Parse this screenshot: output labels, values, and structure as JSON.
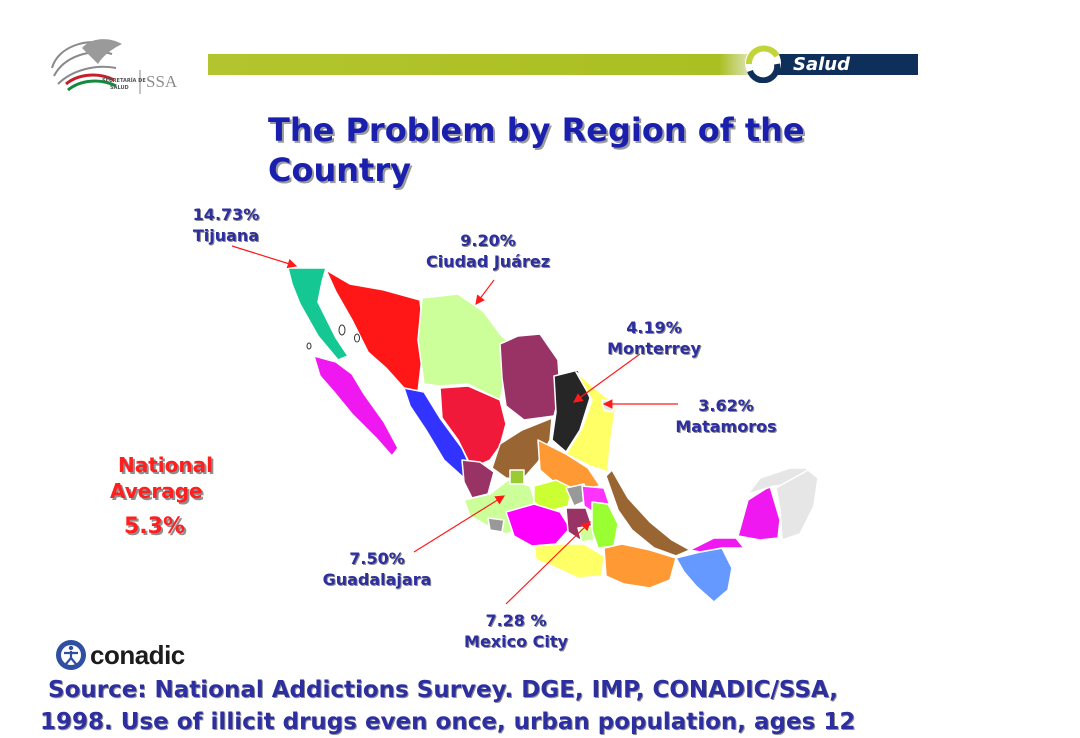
{
  "header": {
    "ministry_logo_text_1": "SECRETARÍA DE",
    "ministry_logo_text_2": "SALUD",
    "ministry_logo_text_3": "SSA",
    "salud_label": "Salud"
  },
  "title": "The Problem by Region of the Country",
  "regions": [
    {
      "percent": "14.73%",
      "city": "Tijuana"
    },
    {
      "percent": "9.20%",
      "city": "Ciudad Juárez"
    },
    {
      "percent": "4.19%",
      "city": "Monterrey"
    },
    {
      "percent": "3.62%",
      "city": "Matamoros"
    },
    {
      "percent": "7.50%",
      "city": "Guadalajara"
    },
    {
      "percent": "7.28 %",
      "city": "Mexico City"
    }
  ],
  "national": {
    "label_1": "National",
    "label_2": "Average",
    "value": "5.3%"
  },
  "conadic_label": "conadic",
  "source": {
    "line1": "Source: National Addictions Survey.  DGE, IMP, CONADIC/SSA,",
    "line2": "1998.  Use of illicit drugs even once, urban population, ages 12"
  },
  "colors": {
    "title": "#1a1fae",
    "labels": "#2d2fa0",
    "national": "#ff1f1f",
    "arrows": "#ff1a1a"
  }
}
